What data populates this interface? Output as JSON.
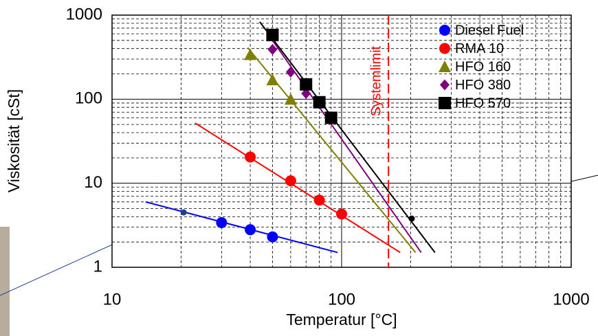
{
  "chart_data": {
    "type": "scatter",
    "log_x": true,
    "log_y": true,
    "grid": true,
    "x_label": "Temperatur [°C]",
    "y_label": "Viskosität [cSt]",
    "xlim": [
      10,
      1000
    ],
    "ylim": [
      1,
      1000
    ],
    "xticks": [
      10,
      100,
      1000
    ],
    "yticks": [
      1,
      10,
      100,
      1000
    ],
    "xminorticks": [
      20,
      30,
      40,
      50,
      60,
      70,
      80,
      90,
      200,
      300,
      400,
      500,
      600,
      700,
      800,
      900
    ],
    "yminorticks": [
      2,
      3,
      4,
      5,
      6,
      7,
      8,
      9,
      20,
      30,
      40,
      50,
      60,
      70,
      80,
      90,
      200,
      300,
      400,
      500,
      600,
      700,
      800,
      900
    ],
    "legend_position": "upper right",
    "series": [
      {
        "name": "Diesel Fuel",
        "color": "#0000ff",
        "marker": "circle",
        "x": [
          30,
          40,
          50
        ],
        "values": [
          3.4,
          2.8,
          2.3
        ],
        "fit_x": [
          14,
          96
        ],
        "fit_values": [
          6,
          1.5
        ]
      },
      {
        "name": "RMA 10",
        "color": "#ff0000",
        "marker": "circle",
        "x": [
          40,
          60,
          80,
          100
        ],
        "values": [
          20.5,
          10.7,
          6.3,
          4.3
        ],
        "fit_x": [
          23,
          180
        ],
        "fit_values": [
          52,
          1.5
        ]
      },
      {
        "name": "HFO 160",
        "color": "#808000",
        "marker": "triangle",
        "x": [
          40,
          50,
          60
        ],
        "values": [
          340,
          170,
          100
        ],
        "fit_x": [
          39,
          210
        ],
        "fit_values": [
          410,
          1.5
        ]
      },
      {
        "name": "HFO 380",
        "color": "#800080",
        "marker": "diamond",
        "x": [
          50,
          60,
          70
        ],
        "values": [
          390,
          210,
          117
        ],
        "fit_x": [
          50,
          222
        ],
        "fit_values": [
          500,
          1.5
        ]
      },
      {
        "name": "HFO 570",
        "color": "#000000",
        "marker": "square",
        "x": [
          50,
          70,
          80,
          90
        ],
        "values": [
          580,
          150,
          92,
          60
        ],
        "fit_x": [
          44,
          255
        ],
        "fit_values": [
          830,
          1.5
        ]
      }
    ],
    "callouts": {
      "x": [
        20.5,
        202
      ],
      "values": [
        4.5,
        3.8
      ]
    },
    "limit": {
      "label": "Systemlimit",
      "x": 160,
      "color": "#ff0000"
    }
  }
}
